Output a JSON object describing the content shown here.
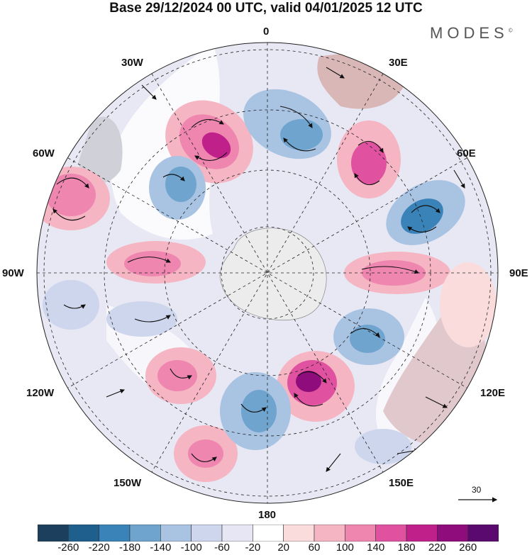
{
  "title": "Base 29/12/2024 00 UTC, valid 04/01/2025 12 UTC",
  "brand": "MODES",
  "brand_mark": "©",
  "longitude_labels": [
    {
      "key": "n",
      "text": "0"
    },
    {
      "key": "ne",
      "text": "30E"
    },
    {
      "key": "e1",
      "text": "60E"
    },
    {
      "key": "e",
      "text": "90E"
    },
    {
      "key": "se1",
      "text": "120E"
    },
    {
      "key": "se",
      "text": "150E"
    },
    {
      "key": "s",
      "text": "180"
    },
    {
      "key": "sw",
      "text": "150W"
    },
    {
      "key": "sw1",
      "text": "120W"
    },
    {
      "key": "w",
      "text": "90W"
    },
    {
      "key": "w1",
      "text": "60W"
    },
    {
      "key": "nw",
      "text": "30W"
    }
  ],
  "colorbar": {
    "ticks": [
      "-260",
      "-220",
      "-180",
      "-140",
      "-100",
      "-60",
      "-20",
      "20",
      "60",
      "100",
      "140",
      "180",
      "220",
      "260"
    ],
    "colors": [
      "#1c3f5e",
      "#1f5f8e",
      "#3a83b8",
      "#6fa4cf",
      "#a9c3e2",
      "#cdd6ec",
      "#e6e6f4",
      "#ffffff",
      "#fbdcdc",
      "#f5b5c3",
      "#ee86b0",
      "#e052a0",
      "#c0208a",
      "#8e0c7b",
      "#5a0a6e"
    ]
  },
  "vector_reference": "30",
  "colors": {
    "land": "#d9d9d9",
    "antarctica": "#ececec",
    "arrow": "#111111"
  }
}
